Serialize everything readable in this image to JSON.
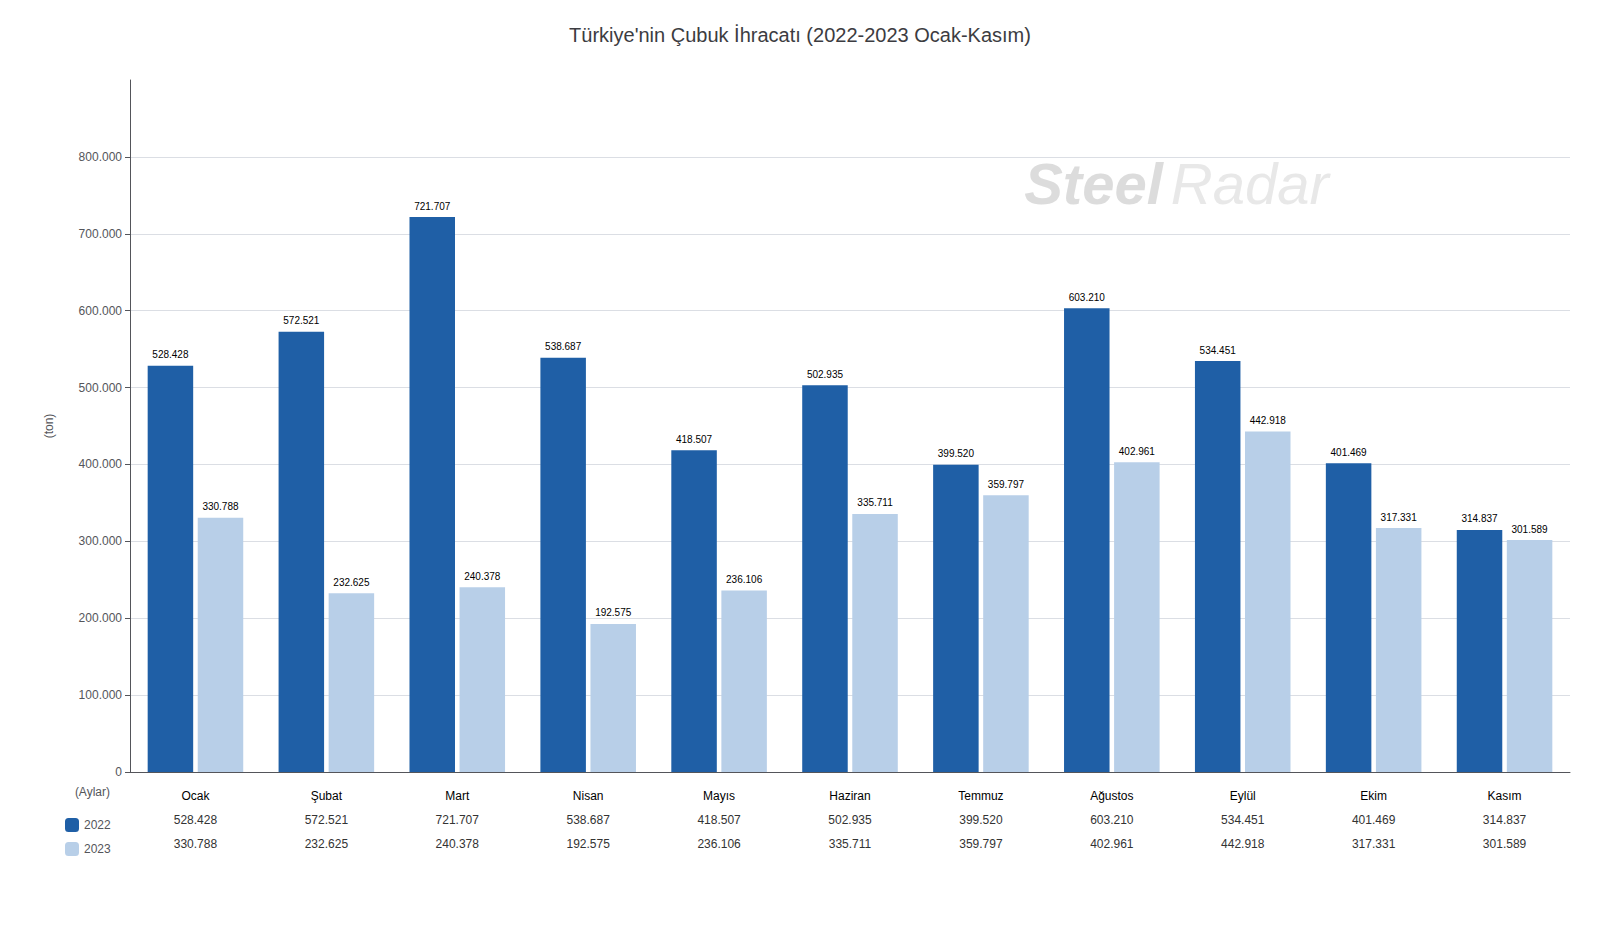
{
  "chart_data": {
    "type": "bar",
    "title": "Türkiye'nin Çubuk İhracatı (2022-2023 Ocak-Kasım)",
    "xlabel": "(Aylar)",
    "ylabel": "(ton)",
    "categories": [
      "Ocak",
      "Şubat",
      "Mart",
      "Nisan",
      "Mayıs",
      "Haziran",
      "Temmuz",
      "Ağustos",
      "Eylül",
      "Ekim",
      "Kasım"
    ],
    "series": [
      {
        "name": "2022",
        "color": "#1F5FA6",
        "values": [
          528428,
          572521,
          721707,
          538687,
          418507,
          502935,
          399520,
          603210,
          534451,
          401469,
          314837
        ],
        "value_labels": [
          "528.428",
          "572.521",
          "721.707",
          "538.687",
          "418.507",
          "502.935",
          "399.520",
          "603.210",
          "534.451",
          "401.469",
          "314.837"
        ]
      },
      {
        "name": "2023",
        "color": "#B8CFE8",
        "values": [
          330788,
          232625,
          240378,
          192575,
          236106,
          335711,
          359797,
          402961,
          442918,
          317331,
          301589
        ],
        "value_labels": [
          "330.788",
          "232.625",
          "240.378",
          "192.575",
          "236.106",
          "335.711",
          "359.797",
          "402.961",
          "442.918",
          "317.331",
          "301.589"
        ]
      }
    ],
    "ylim": [
      0,
      900000
    ],
    "yticks": [
      0,
      {
        "value": 100000,
        "label": "100.000"
      },
      {
        "value": 200000,
        "label": "200.000"
      },
      {
        "value": 300000,
        "label": "300.000"
      },
      {
        "value": 400000,
        "label": "400.000"
      },
      {
        "value": 500000,
        "label": "500.000"
      },
      {
        "value": 600000,
        "label": "600.000"
      },
      {
        "value": 700000,
        "label": "700.000"
      },
      {
        "value": 800000,
        "label": "800.000"
      }
    ],
    "grid": true,
    "legend": "bottom",
    "data_labels": true,
    "annotations": [
      "Steel",
      "Radar"
    ]
  }
}
